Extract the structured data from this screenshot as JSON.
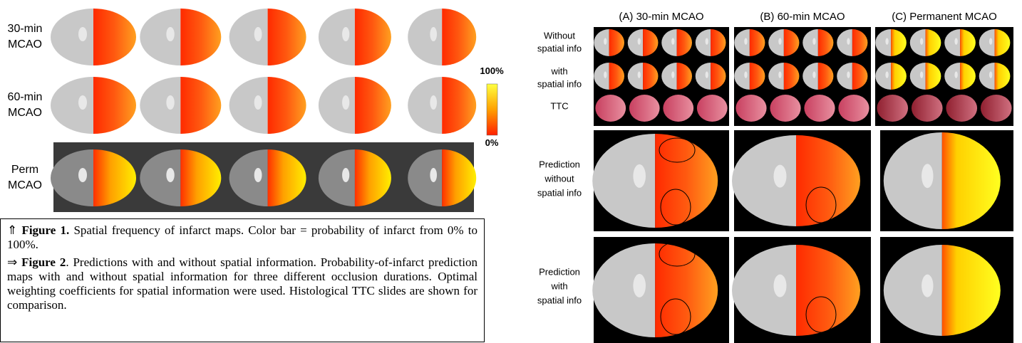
{
  "figure1": {
    "rows": [
      [
        "30-min",
        "MCAO"
      ],
      [
        "60-min",
        "MCAO"
      ],
      [
        "Perm",
        "MCAO"
      ]
    ],
    "colorbar": {
      "max": "100%",
      "min": "0%"
    }
  },
  "caption": {
    "figure1": {
      "symbol": "⇑",
      "label": "Figure 1.",
      "text": "Spatial frequency of infarct maps. Color bar = probability of infarct from 0% to 100%."
    },
    "figure2": {
      "symbol": "⇒",
      "label": "Figure 2",
      "text": ". Predictions with and without spatial information. Probability-of-infarct prediction maps with and without spatial information for three different occlusion durations. Optimal weighting coefficients for spatial information were used. Histological TTC slides are shown for comparison."
    }
  },
  "figure2": {
    "columns": [
      "(A) 30-min MCAO",
      "(B) 60-min MCAO",
      "(C) Permanent MCAO"
    ],
    "small_rows": [
      [
        "Without",
        "spatial info"
      ],
      [
        "with",
        "spatial info"
      ],
      [
        "TTC"
      ]
    ],
    "big_rows": [
      [
        "Prediction",
        "without",
        "spatial info"
      ],
      [
        "Prediction",
        "with",
        "spatial info"
      ]
    ]
  }
}
